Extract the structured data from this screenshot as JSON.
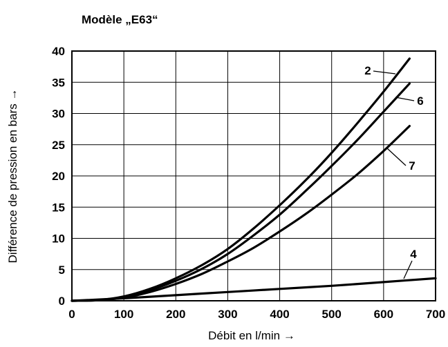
{
  "chart_data": {
    "type": "line",
    "title": "Modèle „E63“",
    "xlabel": "Débit en l/min →",
    "ylabel": "Différence de pression en bars →",
    "xlim": [
      0,
      700
    ],
    "ylim": [
      0,
      40
    ],
    "xticks": [
      0,
      100,
      200,
      300,
      400,
      500,
      600,
      700
    ],
    "yticks": [
      0,
      5,
      10,
      15,
      20,
      25,
      30,
      35,
      40
    ],
    "grid": true,
    "series": [
      {
        "name": "2",
        "x": [
          0,
          50,
          100,
          150,
          200,
          250,
          300,
          350,
          400,
          450,
          500,
          550,
          600,
          650
        ],
        "y": [
          0,
          0.1,
          0.7,
          1.9,
          3.6,
          5.7,
          8.3,
          11.6,
          15.3,
          19.3,
          23.7,
          28.5,
          33.5,
          38.8
        ]
      },
      {
        "name": "6",
        "x": [
          0,
          50,
          100,
          150,
          200,
          250,
          300,
          350,
          400,
          450,
          500,
          550,
          600,
          650
        ],
        "y": [
          0,
          0.1,
          0.6,
          1.7,
          3.2,
          5.1,
          7.5,
          10.5,
          13.8,
          17.6,
          21.6,
          25.8,
          30.3,
          34.8
        ]
      },
      {
        "name": "7",
        "x": [
          0,
          50,
          100,
          150,
          200,
          250,
          300,
          350,
          400,
          450,
          500,
          550,
          600,
          650
        ],
        "y": [
          0,
          0.1,
          0.5,
          1.4,
          2.7,
          4.3,
          6.3,
          8.5,
          11.1,
          13.9,
          17.0,
          20.3,
          24.0,
          28.0
        ]
      },
      {
        "name": "4",
        "x": [
          0,
          100,
          200,
          300,
          400,
          500,
          600,
          700
        ],
        "y": [
          0,
          0.4,
          0.9,
          1.4,
          1.9,
          2.4,
          3.0,
          3.6
        ]
      }
    ]
  }
}
